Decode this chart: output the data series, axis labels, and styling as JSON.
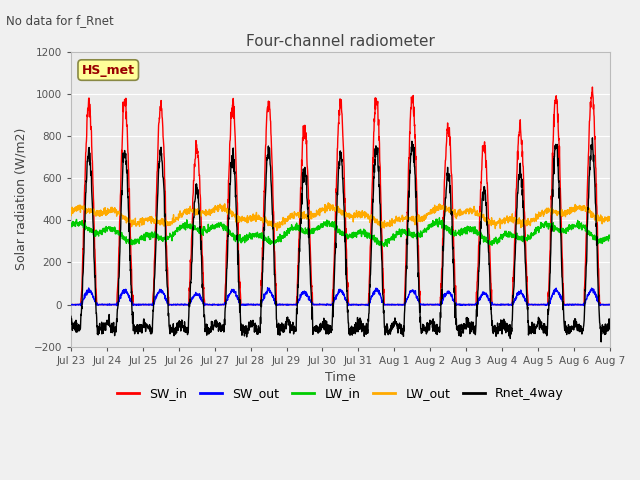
{
  "title": "Four-channel radiometer",
  "subtitle": "No data for f_Rnet",
  "xlabel": "Time",
  "ylabel": "Solar radiation (W/m2)",
  "ylim": [
    -200,
    1200
  ],
  "yticks": [
    -200,
    0,
    200,
    400,
    600,
    800,
    1000,
    1200
  ],
  "fig_facecolor": "#f0f0f0",
  "plot_facecolor": "#ebebeb",
  "station_label": "HS_met",
  "station_label_color": "#990000",
  "station_box_facecolor": "#ffff99",
  "station_box_edgecolor": "#888844",
  "x_tick_labels": [
    "Jul 23",
    "Jul 24",
    "Jul 25",
    "Jul 26",
    "Jul 27",
    "Jul 28",
    "Jul 29",
    "Jul 30",
    "Jul 31",
    "Aug 1",
    "Aug 2",
    "Aug 3",
    "Aug 4",
    "Aug 5",
    "Aug 6",
    "Aug 7"
  ],
  "series": {
    "SW_in": {
      "color": "#ff0000",
      "lw": 1.0
    },
    "SW_out": {
      "color": "#0000ff",
      "lw": 1.0
    },
    "LW_in": {
      "color": "#00cc00",
      "lw": 1.0
    },
    "LW_out": {
      "color": "#ffaa00",
      "lw": 1.0
    },
    "Rnet_4way": {
      "color": "#000000",
      "lw": 1.0
    }
  },
  "n_days": 15,
  "random_seed": 42
}
